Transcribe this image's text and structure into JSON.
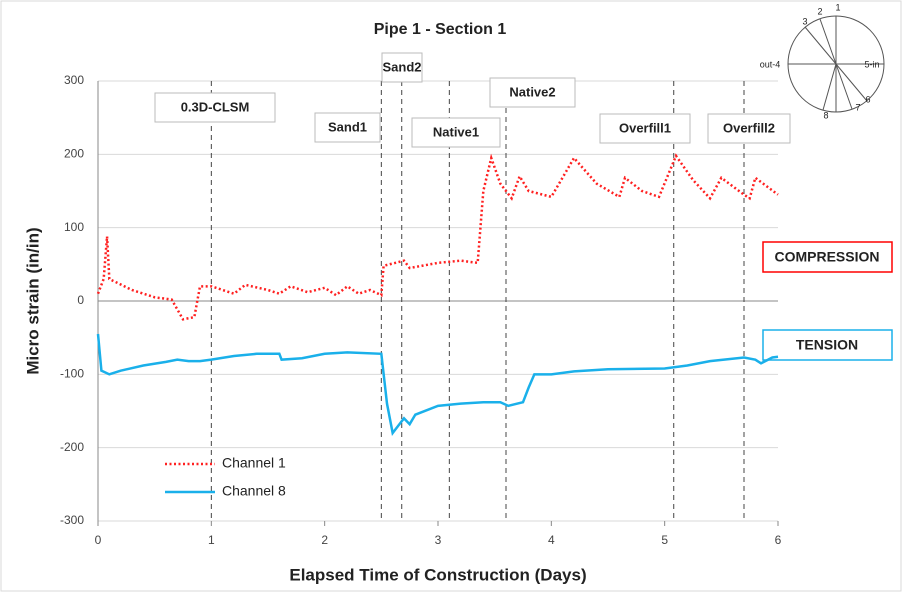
{
  "chart_data": {
    "type": "line",
    "title": "Pipe 1 - Section 1",
    "xlabel": "Elapsed Time of Construction (Days)",
    "ylabel": "Micro strain (in/in)",
    "xlim": [
      0,
      6
    ],
    "xticks": [
      0,
      1,
      2,
      3,
      4,
      5,
      6
    ],
    "ylim": [
      -300,
      300
    ],
    "yticks": [
      -300,
      -200,
      -100,
      0,
      100,
      200,
      300
    ],
    "grid": true,
    "legend": "lower left",
    "series": [
      {
        "name": "Channel 1",
        "color": "#ff2020",
        "style": "dotted",
        "x": [
          0,
          0.05,
          0.08,
          0.1,
          0.3,
          0.5,
          0.65,
          0.75,
          0.85,
          0.9,
          1.0,
          1.1,
          1.2,
          1.3,
          1.5,
          1.6,
          1.7,
          1.85,
          2.0,
          2.1,
          2.2,
          2.3,
          2.4,
          2.5,
          2.52,
          2.7,
          2.75,
          3.0,
          3.2,
          3.35,
          3.4,
          3.47,
          3.55,
          3.65,
          3.72,
          3.8,
          4.0,
          4.2,
          4.4,
          4.6,
          4.65,
          4.8,
          4.95,
          5.1,
          5.25,
          5.4,
          5.5,
          5.7,
          5.75,
          5.8,
          6.0
        ],
        "values": [
          10,
          30,
          88,
          30,
          15,
          5,
          2,
          -25,
          -22,
          20,
          20,
          15,
          10,
          22,
          15,
          10,
          20,
          12,
          18,
          8,
          20,
          10,
          15,
          8,
          48,
          55,
          45,
          52,
          55,
          52,
          150,
          195,
          160,
          140,
          170,
          150,
          142,
          195,
          160,
          142,
          168,
          150,
          142,
          198,
          165,
          140,
          168,
          145,
          140,
          168,
          145
        ]
      },
      {
        "name": "Channel 8",
        "color": "#1ab0ea",
        "style": "solid",
        "x": [
          0,
          0.03,
          0.1,
          0.2,
          0.4,
          0.6,
          0.7,
          0.8,
          0.9,
          1.0,
          1.2,
          1.4,
          1.6,
          1.62,
          1.8,
          2.0,
          2.2,
          2.5,
          2.55,
          2.6,
          2.65,
          2.7,
          2.75,
          2.8,
          3.0,
          3.2,
          3.4,
          3.55,
          3.62,
          3.75,
          3.8,
          3.85,
          4.0,
          4.2,
          4.5,
          5.0,
          5.2,
          5.4,
          5.7,
          5.8,
          5.85,
          5.95,
          6.0
        ],
        "values": [
          -45,
          -95,
          -100,
          -95,
          -88,
          -83,
          -80,
          -82,
          -82,
          -80,
          -75,
          -72,
          -72,
          -80,
          -78,
          -72,
          -70,
          -72,
          -140,
          -180,
          -170,
          -160,
          -168,
          -155,
          -143,
          -140,
          -138,
          -138,
          -143,
          -138,
          -118,
          -100,
          -100,
          -96,
          -93,
          -92,
          -88,
          -82,
          -77,
          -80,
          -85,
          -77,
          -76
        ]
      }
    ],
    "annotations": [
      {
        "label": "0.3D-CLSM",
        "x": 1.0
      },
      {
        "label": "Sand1",
        "x": 2.5
      },
      {
        "label": "Sand2",
        "x": 2.68
      },
      {
        "label": "Native1",
        "x": 3.1
      },
      {
        "label": "Native2",
        "x": 3.6
      },
      {
        "label": "Overfill1",
        "x": 5.08
      },
      {
        "label": "Overfill2",
        "x": 5.7
      }
    ],
    "region_labels": [
      {
        "label": "COMPRESSION",
        "color": "#ff0000"
      },
      {
        "label": "TENSION",
        "color": "#1ab0ea"
      }
    ],
    "diagram_labels": [
      "1",
      "2",
      "3",
      "out-4",
      "5-in",
      "6",
      "7",
      "8"
    ]
  }
}
